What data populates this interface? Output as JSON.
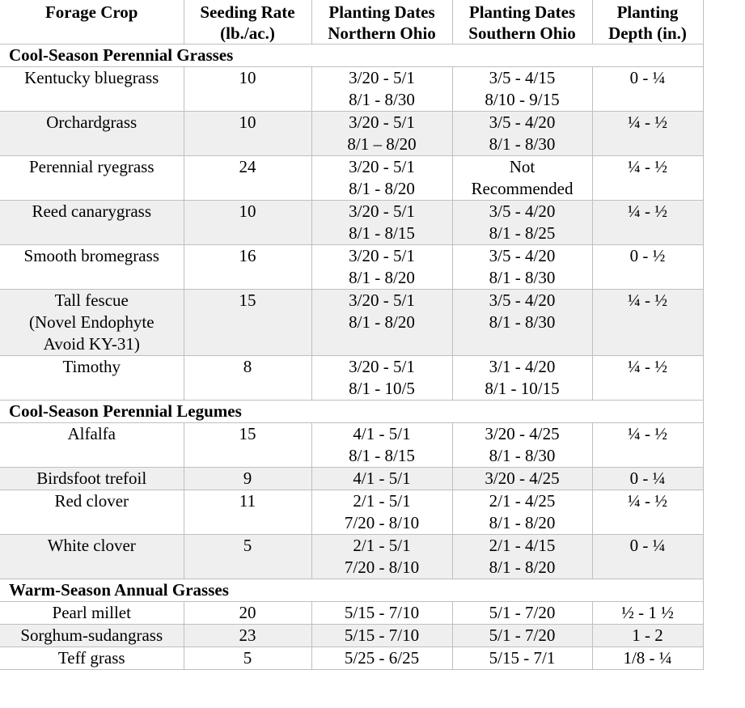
{
  "headers": [
    [
      "Forage Crop"
    ],
    [
      "Seeding Rate",
      "(lb./ac.)"
    ],
    [
      "Planting Dates",
      "Northern Ohio"
    ],
    [
      "Planting Dates",
      "Southern Ohio"
    ],
    [
      "Planting",
      "Depth (in.)"
    ]
  ],
  "sections": [
    {
      "title": "Cool-Season Perennial Grasses",
      "rows": [
        {
          "crop": [
            "Kentucky bluegrass"
          ],
          "rate": "10",
          "north": [
            "3/20 - 5/1",
            "8/1 - 8/30"
          ],
          "south": [
            "3/5 - 4/15",
            "8/10 - 9/15"
          ],
          "depth": "0 - ¼"
        },
        {
          "crop": [
            "Orchardgrass"
          ],
          "rate": "10",
          "north": [
            "3/20 - 5/1",
            "8/1 – 8/20"
          ],
          "south": [
            "3/5 - 4/20",
            "8/1 - 8/30"
          ],
          "depth": "¼ - ½"
        },
        {
          "crop": [
            "Perennial ryegrass"
          ],
          "rate": "24",
          "north": [
            "3/20 - 5/1",
            "8/1 - 8/20"
          ],
          "south": [
            "Not",
            "Recommended"
          ],
          "depth": "¼ - ½"
        },
        {
          "crop": [
            "Reed canarygrass"
          ],
          "rate": "10",
          "north": [
            "3/20 - 5/1",
            "8/1 - 8/15"
          ],
          "south": [
            "3/5 - 4/20",
            "8/1 - 8/25"
          ],
          "depth": "¼ - ½"
        },
        {
          "crop": [
            "Smooth bromegrass"
          ],
          "rate": "16",
          "north": [
            "3/20 - 5/1",
            "8/1 - 8/20"
          ],
          "south": [
            "3/5 - 4/20",
            "8/1 - 8/30"
          ],
          "depth": "0 - ½"
        },
        {
          "crop": [
            "Tall fescue",
            "(Novel Endophyte",
            "Avoid KY-31)"
          ],
          "rate": "15",
          "north": [
            "3/20 - 5/1",
            "8/1 - 8/20"
          ],
          "south": [
            "3/5 - 4/20",
            "8/1 - 8/30"
          ],
          "depth": "¼ - ½"
        },
        {
          "crop": [
            "Timothy"
          ],
          "rate": "8",
          "north": [
            "3/20 - 5/1",
            "8/1 - 10/5"
          ],
          "south": [
            "3/1 - 4/20",
            "8/1 - 10/15"
          ],
          "depth": "¼ - ½"
        }
      ]
    },
    {
      "title": "Cool-Season Perennial Legumes",
      "rows": [
        {
          "crop": [
            "Alfalfa"
          ],
          "rate": "15",
          "north": [
            "4/1 - 5/1",
            "8/1 - 8/15"
          ],
          "south": [
            "3/20 - 4/25",
            "8/1 - 8/30"
          ],
          "depth": "¼ - ½"
        },
        {
          "crop": [
            "Birdsfoot trefoil"
          ],
          "rate": "9",
          "north": [
            "4/1 - 5/1"
          ],
          "south": [
            "3/20 - 4/25"
          ],
          "depth": "0 - ¼"
        },
        {
          "crop": [
            "Red clover"
          ],
          "rate": "11",
          "north": [
            "2/1 - 5/1",
            "7/20 - 8/10"
          ],
          "south": [
            "2/1 - 4/25",
            "8/1 - 8/20"
          ],
          "depth": "¼ - ½"
        },
        {
          "crop": [
            "White clover"
          ],
          "rate": "5",
          "north": [
            "2/1 - 5/1",
            "7/20 - 8/10"
          ],
          "south": [
            "2/1 - 4/15",
            "8/1 - 8/20"
          ],
          "depth": "0 - ¼"
        }
      ]
    },
    {
      "title": "Warm-Season Annual Grasses",
      "rows": [
        {
          "crop": [
            "Pearl millet"
          ],
          "rate": "20",
          "north": [
            "5/15 - 7/10"
          ],
          "south": [
            "5/1 - 7/20"
          ],
          "depth": "½ - 1 ½"
        },
        {
          "crop": [
            "Sorghum-sudangrass"
          ],
          "rate": "23",
          "north": [
            "5/15 - 7/10"
          ],
          "south": [
            "5/1 - 7/20"
          ],
          "depth": "1 - 2"
        },
        {
          "crop": [
            "Teff grass"
          ],
          "rate": "5",
          "north": [
            "5/25 - 6/25"
          ],
          "south": [
            "5/15 - 7/1"
          ],
          "depth": "1/8 - ¼"
        }
      ]
    }
  ]
}
